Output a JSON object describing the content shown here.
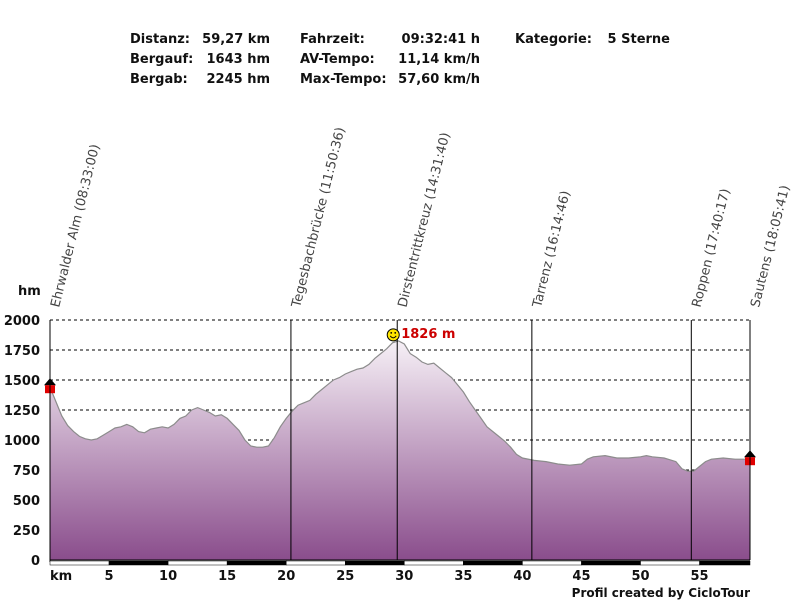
{
  "stats": [
    {
      "label": "Distanz:",
      "value": "59,27 km"
    },
    {
      "label": "Bergauf:",
      "value": "1643 hm"
    },
    {
      "label": "Bergab:",
      "value": "2245 hm"
    },
    {
      "label": "Fahrzeit:",
      "value": "09:32:41 h"
    },
    {
      "label": "AV-Tempo:",
      "value": "11,14 km/h"
    },
    {
      "label": "Max-Tempo:",
      "value": "57,60 km/h"
    },
    {
      "label": "Kategorie:",
      "value": "5 Sterne"
    }
  ],
  "credit": "Profil created by CicloTour",
  "colors": {
    "fill_top": "#f6f0f6",
    "fill_bottom": "#8a4d8c",
    "outline": "#8c8c8c",
    "peak_label": "#cc0000",
    "flag": "#e00000"
  },
  "chart_data": {
    "type": "area",
    "xlabel": "km",
    "ylabel": "hm",
    "xlim": [
      0,
      59.27
    ],
    "ylim": [
      0,
      2000
    ],
    "x_ticks": [
      5,
      10,
      15,
      20,
      25,
      30,
      35,
      40,
      45,
      50,
      55
    ],
    "y_ticks": [
      0,
      250,
      500,
      750,
      1000,
      1250,
      1500,
      1750,
      2000
    ],
    "grid": true,
    "series": [
      {
        "x": [
          0,
          0.5,
          1,
          1.5,
          2,
          2.5,
          3,
          3.5,
          4,
          4.5,
          5,
          5.5,
          6,
          6.5,
          7,
          7.5,
          8,
          8.5,
          9,
          9.5,
          10,
          10.5,
          11,
          11.5,
          12,
          12.5,
          13,
          13.5,
          14,
          14.5,
          15,
          15.5,
          16,
          16.5,
          17,
          17.5,
          18,
          18.5,
          19,
          19.5,
          20,
          20.5,
          21,
          21.5,
          22,
          22.5,
          23,
          23.5,
          24,
          24.5,
          25,
          25.5,
          26,
          26.5,
          27,
          27.5,
          28,
          28.5,
          29,
          29.5,
          30,
          30.5,
          31,
          31.5,
          32,
          32.5,
          33,
          33.5,
          34,
          34.5,
          35,
          35.5,
          36,
          36.5,
          37,
          37.5,
          38,
          38.5,
          39,
          39.5,
          40,
          41,
          42,
          43,
          44,
          45,
          45.5,
          46,
          47,
          48,
          49,
          50,
          50.5,
          51,
          52,
          53,
          53.5,
          54,
          54.5,
          55,
          55.5,
          56,
          57,
          58,
          59.27
        ],
        "y": [
          1440,
          1320,
          1200,
          1120,
          1070,
          1030,
          1010,
          1000,
          1010,
          1040,
          1070,
          1100,
          1110,
          1130,
          1110,
          1070,
          1060,
          1090,
          1100,
          1110,
          1100,
          1130,
          1180,
          1200,
          1250,
          1270,
          1250,
          1230,
          1200,
          1210,
          1180,
          1130,
          1080,
          1000,
          950,
          940,
          940,
          950,
          1020,
          1110,
          1180,
          1240,
          1290,
          1310,
          1330,
          1380,
          1420,
          1460,
          1500,
          1520,
          1550,
          1570,
          1590,
          1600,
          1630,
          1680,
          1720,
          1760,
          1810,
          1826,
          1800,
          1720,
          1690,
          1650,
          1630,
          1640,
          1600,
          1560,
          1520,
          1460,
          1400,
          1320,
          1250,
          1180,
          1110,
          1070,
          1030,
          990,
          940,
          880,
          850,
          830,
          820,
          800,
          790,
          800,
          840,
          860,
          870,
          850,
          850,
          860,
          870,
          860,
          850,
          820,
          760,
          740,
          740,
          780,
          820,
          840,
          850,
          840,
          840
        ]
      }
    ],
    "annotations": [
      {
        "x": 0,
        "label": "Ehrwalder Alm (08:33:00)"
      },
      {
        "x": 20.4,
        "label": "Tegesbachbrücke (11:50:36)"
      },
      {
        "x": 29.4,
        "label": "Dirstentrittkreuz (14:31:40)"
      },
      {
        "x": 40.8,
        "label": "Tarrenz (16:14:46)"
      },
      {
        "x": 54.3,
        "label": "Roppen (17:40:17)"
      },
      {
        "x": 59.27,
        "label": "Sautens (18:05:41)"
      }
    ],
    "peak": {
      "x": 29.4,
      "y": 1826,
      "label": "1826 m"
    },
    "start_elevation": 1440,
    "end_elevation": 840
  }
}
